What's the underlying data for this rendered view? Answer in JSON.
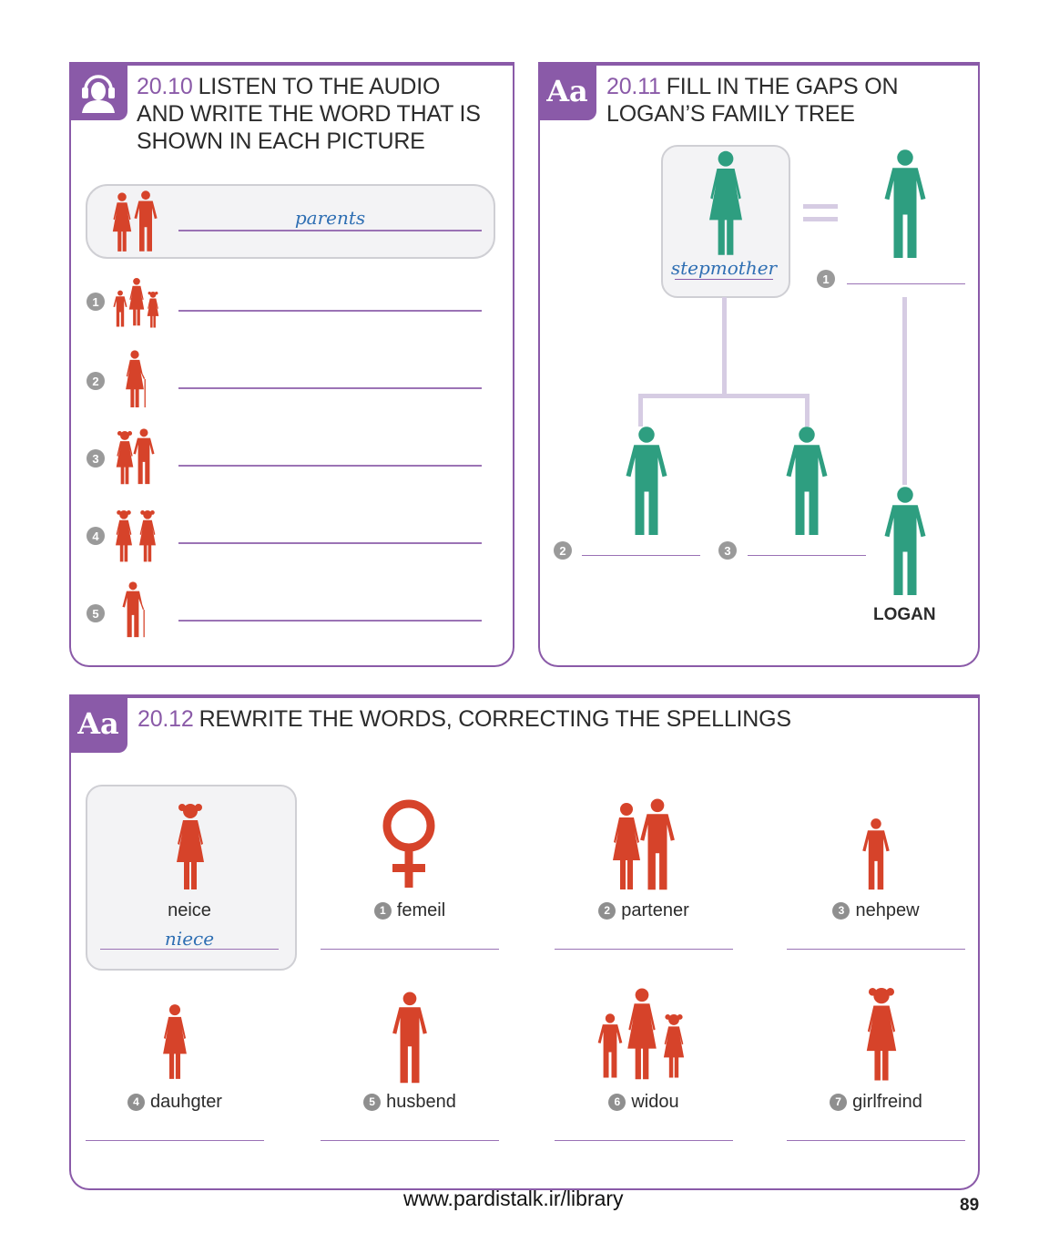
{
  "colors": {
    "accent": "#8a5aa8",
    "figure_red": "#d6432a",
    "figure_green": "#2e9e80",
    "answer_blue": "#2f6fb3"
  },
  "ex1": {
    "number": "20.10",
    "title_lines": [
      "LISTEN TO THE AUDIO",
      "AND WRITE THE WORD THAT IS",
      "SHOWN IN EACH PICTURE"
    ],
    "icon": "headphones-user-icon",
    "example_answer": "parents",
    "items": [
      "1",
      "2",
      "3",
      "4",
      "5"
    ]
  },
  "ex2": {
    "number": "20.11",
    "title_lines": [
      "FILL IN THE GAPS ON",
      "LOGAN’S FAMILY TREE"
    ],
    "tag": "Aa",
    "example_answer": "stepmother",
    "gap_numbers": [
      "1",
      "2",
      "3"
    ],
    "logan_label": "LOGAN"
  },
  "ex3": {
    "number": "20.12",
    "title": "REWRITE THE WORDS, CORRECTING THE SPELLINGS",
    "tag": "Aa",
    "example_word": "neice",
    "example_answer": "niece",
    "items": [
      {
        "num": "1",
        "word": "femeil"
      },
      {
        "num": "2",
        "word": "partener"
      },
      {
        "num": "3",
        "word": "nehpew"
      },
      {
        "num": "4",
        "word": "dauhgter"
      },
      {
        "num": "5",
        "word": "husbend"
      },
      {
        "num": "6",
        "word": "widou"
      },
      {
        "num": "7",
        "word": "girlfreind"
      }
    ]
  },
  "footer": {
    "url": "www.pardistalk.ir/library",
    "page_number": "89"
  }
}
